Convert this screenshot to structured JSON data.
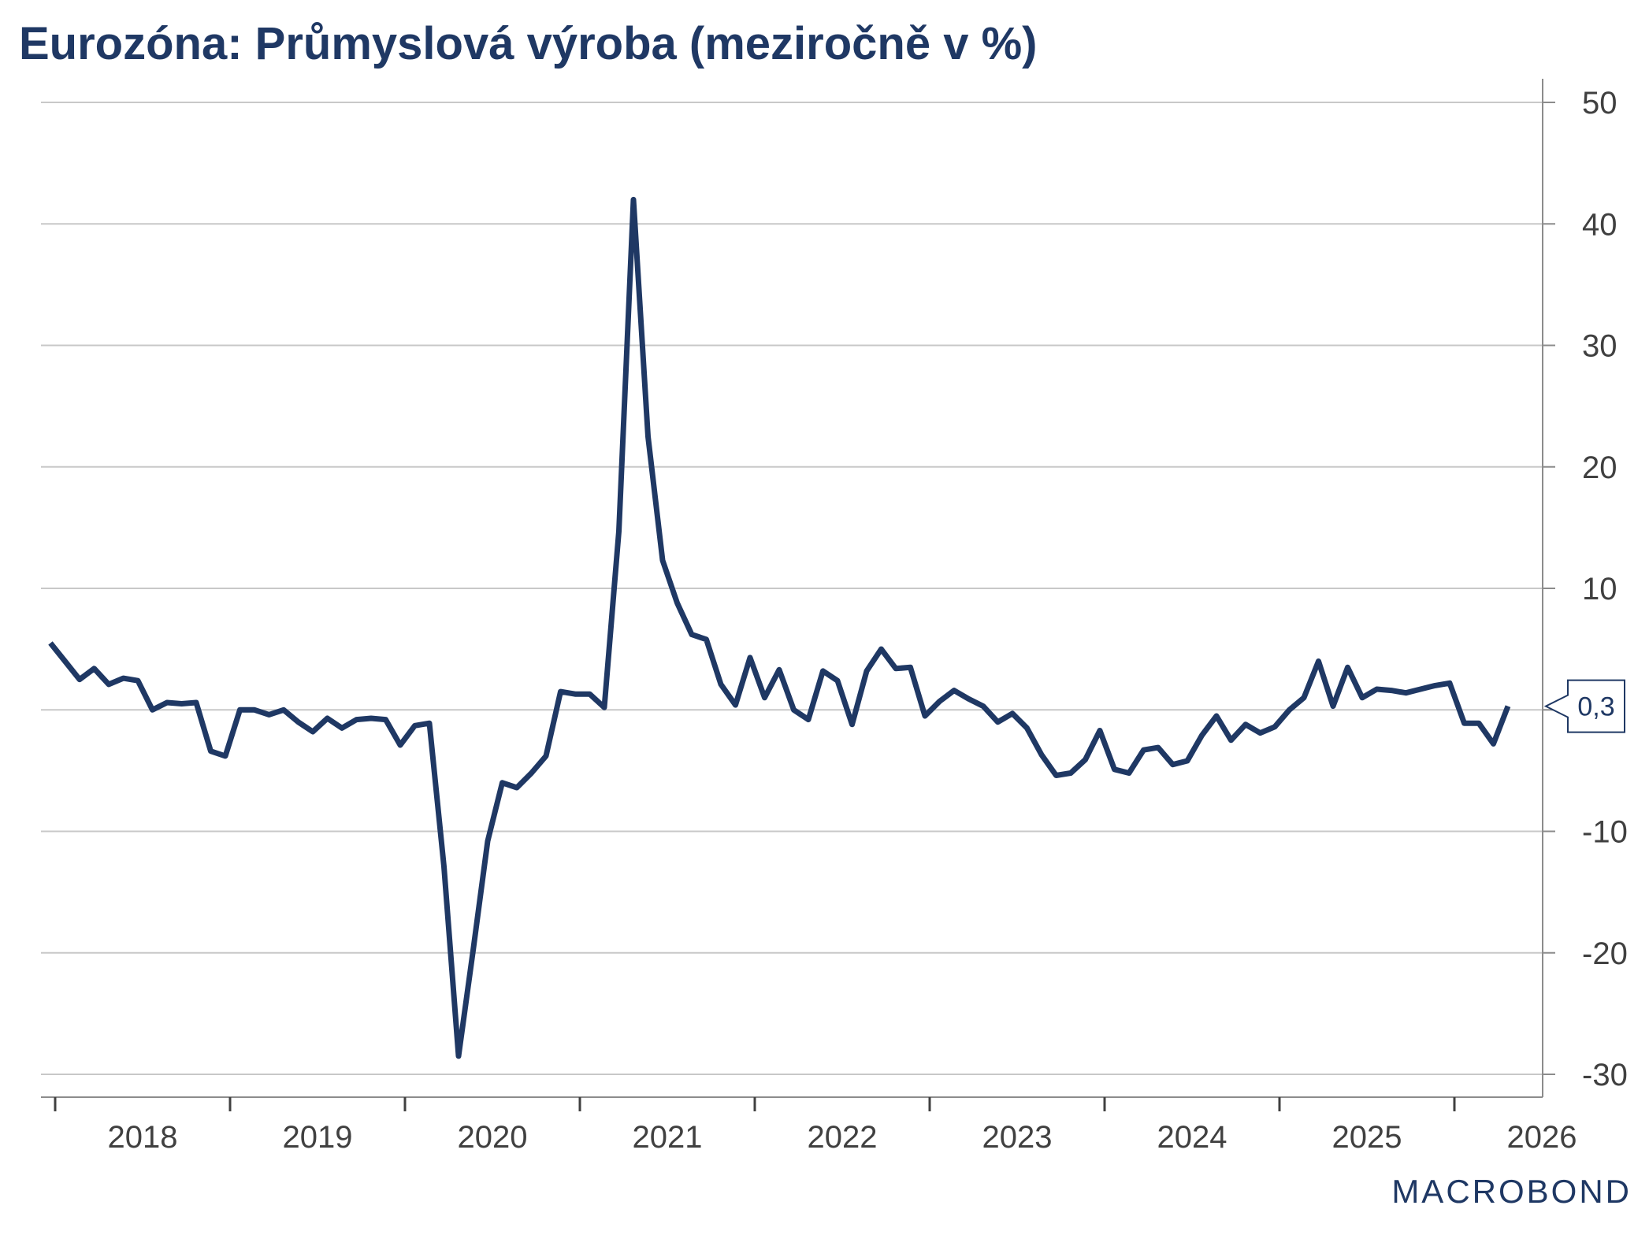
{
  "chart_data": {
    "type": "line",
    "title": "Eurozóna: Průmyslová výroba (meziročně v %)",
    "xlabel": "",
    "ylabel": "",
    "ylim": [
      -30,
      50
    ],
    "yticks": [
      "50",
      "40",
      "30",
      "20",
      "10",
      "0",
      "-10",
      "-20",
      "-30"
    ],
    "xticks": [
      "2018",
      "2019",
      "2020",
      "2021",
      "2022",
      "2023",
      "2024",
      "2025",
      "2026"
    ],
    "x_start": "2018-01",
    "grid": "horizontal",
    "y_axis_side": "right",
    "series": [
      {
        "color": "#1f3864",
        "last_value_label": "0,3",
        "values": [
          5.5,
          4,
          2.5,
          3.4,
          2.1,
          2.6,
          2.4,
          0,
          0.6,
          0.5,
          0.6,
          -3.4,
          -3.8,
          0,
          0,
          -0.4,
          0,
          -1,
          -1.8,
          -0.7,
          -1.5,
          -0.8,
          -0.7,
          -0.8,
          -2.9,
          -1.3,
          -1.1,
          -12.9,
          -28.5,
          -19.8,
          -10.8,
          -6,
          -6.4,
          -5.2,
          -3.8,
          1.5,
          1.3,
          1.3,
          0.2,
          14.7,
          42,
          22.5,
          12.3,
          8.8,
          6.2,
          5.8,
          2.1,
          0.4,
          4.3,
          1,
          3.3,
          0,
          -0.8,
          3.2,
          2.4,
          -1.2,
          3.2,
          5,
          3.4,
          3.5,
          -0.5,
          0.7,
          1.6,
          0.9,
          0.3,
          -1,
          -0.3,
          -1.5,
          -3.7,
          -5.4,
          -5.2,
          -4.1,
          -1.7,
          -4.9,
          -5.2,
          -3.3,
          -3.1,
          -4.5,
          -4.2,
          -2.1,
          -0.5,
          -2.5,
          -1.2,
          -1.9,
          -1.4,
          0,
          1,
          4,
          0.3,
          3.5,
          1,
          1.7,
          1.6,
          1.4,
          1.7,
          2,
          2.2,
          -1.1,
          -1.1,
          -2.8,
          0.3
        ]
      }
    ]
  },
  "branding": {
    "logo_text": "MACROBOND",
    "logo_color": "#1f3864"
  }
}
